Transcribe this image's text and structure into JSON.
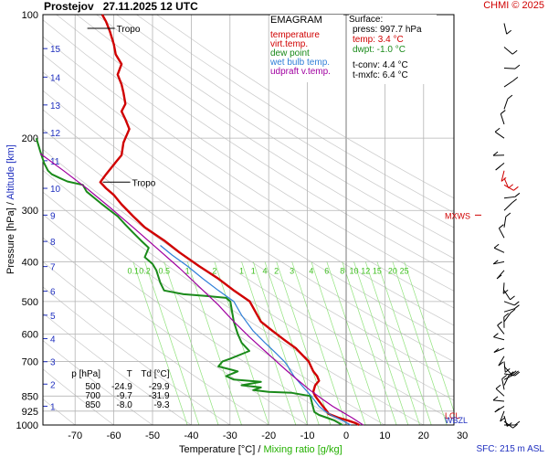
{
  "header": {
    "station": "Prostejov",
    "datetime": "27.11.2025 12 UTC",
    "copyright": "CHMI © 2025"
  },
  "legend": {
    "title": "EMAGRAM",
    "items": [
      {
        "label": "temperature",
        "color": "#d00000"
      },
      {
        "label": "virt.temp.",
        "color": "#d00000"
      },
      {
        "label": "dew point",
        "color": "#1a8a1a"
      },
      {
        "label": "wet bulb temp.",
        "color": "#2f7fd8"
      },
      {
        "label": "udpraft v.temp.",
        "color": "#a000a0"
      }
    ]
  },
  "surface": {
    "title": "Surface:",
    "press": "press: 997.7 hPa",
    "temp": "temp: 3.4 °C",
    "dwpt": "dwpt: -1.0 °C",
    "tconv": "t-conv: 4.4 °C",
    "tmxfc": "t-mxfc: 6.4 °C"
  },
  "table": {
    "headers": [
      "p [hPa]",
      "T",
      "Td [°C]"
    ],
    "rows": [
      [
        "500",
        "-24.9",
        "-29.9"
      ],
      [
        "700",
        "-9.7",
        "-31.9"
      ],
      [
        "850",
        "-8.0",
        "-9.3"
      ]
    ]
  },
  "axis_labels": {
    "y_pressure": "Pressure [hPa]  /  ",
    "y_altitude": "Altitude [km]",
    "x_temperature": "Temperature [°C]  /  ",
    "x_mixing": "Mixing ratio [g/kg]"
  },
  "sfc_text": "SFC: 215 m ASL",
  "colors": {
    "temperature": "#d00000",
    "dewpoint": "#1a8a1a",
    "wetbulb": "#2f7fd8",
    "parcel": "#a000a0",
    "mixing": "#8fe27a",
    "altitude": "#1f2fbf",
    "grid": "#b4b4b4"
  },
  "chart_data": {
    "type": "line",
    "title": "EMAGRAM",
    "xlabel": "Temperature [°C]",
    "ylabel": "Pressure [hPa]",
    "xlim": [
      -80,
      35
    ],
    "ylim": [
      1000,
      100
    ],
    "y_scale": "log",
    "x_ticks": [
      -70,
      -60,
      -50,
      -40,
      -30,
      -20,
      -10,
      0,
      10,
      20,
      30
    ],
    "y_ticks": [
      100,
      200,
      300,
      400,
      500,
      600,
      700,
      850,
      925,
      1000
    ],
    "altitude_ticks_km": [
      {
        "km": "1",
        "p": 900
      },
      {
        "km": "2",
        "p": 795
      },
      {
        "km": "3",
        "p": 701
      },
      {
        "km": "4",
        "p": 616
      },
      {
        "km": "5",
        "p": 540
      },
      {
        "km": "6",
        "p": 472
      },
      {
        "km": "7",
        "p": 411
      },
      {
        "km": "8",
        "p": 357
      },
      {
        "km": "9",
        "p": 308
      },
      {
        "km": "10",
        "p": 265
      },
      {
        "km": "11",
        "p": 227
      },
      {
        "km": "12",
        "p": 194
      },
      {
        "km": "13",
        "p": 166
      },
      {
        "km": "14",
        "p": 142
      },
      {
        "km": "15",
        "p": 121
      }
    ],
    "mixing_ratio_labels": [
      {
        "w": "0.1",
        "t": -55
      },
      {
        "w": "0.2",
        "t": -52
      },
      {
        "w": "0.5",
        "t": -47
      },
      {
        "w": "1",
        "t": -41
      },
      {
        "w": "2",
        "t": -34
      },
      {
        "w": "1",
        "t": -27
      },
      {
        "w": "1",
        "t": -24
      },
      {
        "w": "4",
        "t": -21
      },
      {
        "w": "2",
        "t": -18
      },
      {
        "w": "3",
        "t": -14
      },
      {
        "w": "4",
        "t": -9
      },
      {
        "w": "6",
        "t": -5
      },
      {
        "w": "8",
        "t": -1
      },
      {
        "w": "10",
        "t": 2
      },
      {
        "w": "12",
        "t": 5
      },
      {
        "w": "15",
        "t": 8
      },
      {
        "w": "20",
        "t": 12
      },
      {
        "w": "25",
        "t": 15
      }
    ],
    "series": [
      {
        "name": "temperature",
        "key": "temperature",
        "points": [
          [
            3.4,
            1000
          ],
          [
            2.5,
            990
          ],
          [
            0.5,
            975
          ],
          [
            -2,
            960
          ],
          [
            -4.5,
            940
          ],
          [
            -5,
            925
          ],
          [
            -6,
            900
          ],
          [
            -7,
            875
          ],
          [
            -8,
            850
          ],
          [
            -8.5,
            830
          ],
          [
            -8,
            800
          ],
          [
            -7,
            780
          ],
          [
            -7.5,
            760
          ],
          [
            -8.5,
            740
          ],
          [
            -9.7,
            700
          ],
          [
            -11,
            680
          ],
          [
            -13,
            650
          ],
          [
            -16,
            620
          ],
          [
            -19,
            590
          ],
          [
            -22,
            560
          ],
          [
            -24.9,
            500
          ],
          [
            -29,
            470
          ],
          [
            -33,
            440
          ],
          [
            -38,
            410
          ],
          [
            -43,
            380
          ],
          [
            -47,
            355
          ],
          [
            -52,
            330
          ],
          [
            -55,
            310
          ],
          [
            -58,
            290
          ],
          [
            -60,
            275
          ],
          [
            -62,
            265
          ],
          [
            -63.5,
            256
          ],
          [
            -62,
            245
          ],
          [
            -60,
            232
          ],
          [
            -58,
            220
          ],
          [
            -57.5,
            205
          ],
          [
            -56,
            190
          ],
          [
            -57,
            180
          ],
          [
            -58,
            172
          ],
          [
            -57,
            165
          ],
          [
            -57.5,
            155
          ],
          [
            -58,
            148
          ],
          [
            -59,
            140
          ],
          [
            -58,
            132
          ],
          [
            -59.5,
            125
          ],
          [
            -60,
            118
          ],
          [
            -61,
            110
          ],
          [
            -62,
            104
          ],
          [
            -63,
            100
          ]
        ]
      },
      {
        "name": "dew point",
        "key": "dewpoint",
        "points": [
          [
            -1,
            1000
          ],
          [
            -1.8,
            990
          ],
          [
            -3,
            975
          ],
          [
            -5,
            960
          ],
          [
            -7,
            945
          ],
          [
            -8.2,
            930
          ],
          [
            -8.6,
            900
          ],
          [
            -9.0,
            870
          ],
          [
            -9.3,
            850
          ],
          [
            -14,
            835
          ],
          [
            -20,
            830
          ],
          [
            -24,
            822
          ],
          [
            -22,
            810
          ],
          [
            -27,
            800
          ],
          [
            -22,
            785
          ],
          [
            -29,
            775
          ],
          [
            -31,
            760
          ],
          [
            -28,
            740
          ],
          [
            -33,
            720
          ],
          [
            -31.9,
            700
          ],
          [
            -30,
            690
          ],
          [
            -25,
            660
          ],
          [
            -27,
            630
          ],
          [
            -28,
            600
          ],
          [
            -29,
            560
          ],
          [
            -29.9,
            500
          ],
          [
            -31,
            490
          ],
          [
            -36,
            485
          ],
          [
            -42,
            480
          ],
          [
            -47,
            470
          ],
          [
            -48,
            450
          ],
          [
            -49,
            420
          ],
          [
            -50,
            405
          ],
          [
            -52,
            390
          ],
          [
            -51,
            370
          ],
          [
            -53,
            355
          ],
          [
            -55,
            340
          ],
          [
            -57,
            325
          ],
          [
            -59,
            310
          ],
          [
            -61,
            300
          ],
          [
            -63,
            290
          ],
          [
            -67,
            270
          ],
          [
            -68,
            260
          ],
          [
            -72,
            255
          ],
          [
            -74,
            250
          ],
          [
            -76,
            245
          ],
          [
            -77,
            240
          ],
          [
            -78,
            230
          ],
          [
            -79,
            215
          ],
          [
            -80,
            200
          ]
        ]
      },
      {
        "name": "wet bulb temp.",
        "key": "wetbulb",
        "points": [
          [
            1.2,
            1000
          ],
          [
            -1,
            975
          ],
          [
            -3.5,
            950
          ],
          [
            -5.5,
            925
          ],
          [
            -7,
            900
          ],
          [
            -8,
            875
          ],
          [
            -9,
            850
          ],
          [
            -10.5,
            820
          ],
          [
            -12,
            790
          ],
          [
            -13.5,
            760
          ],
          [
            -15,
            720
          ],
          [
            -16,
            700
          ],
          [
            -18,
            670
          ],
          [
            -21,
            630
          ],
          [
            -24,
            590
          ],
          [
            -27,
            540
          ],
          [
            -29,
            500
          ],
          [
            -33,
            470
          ],
          [
            -37,
            440
          ],
          [
            -41,
            410
          ],
          [
            -45,
            385
          ],
          [
            -48,
            365
          ]
        ]
      },
      {
        "name": "udpraft v.temp.",
        "key": "parcel",
        "points": [
          [
            4.4,
            1000
          ],
          [
            1.5,
            960
          ],
          [
            -1,
            930
          ],
          [
            -3.5,
            900
          ],
          [
            -6.5,
            860
          ],
          [
            -9.5,
            820
          ],
          [
            -13,
            770
          ],
          [
            -15.5,
            735
          ],
          [
            -18,
            700
          ],
          [
            -21,
            660
          ],
          [
            -25,
            610
          ],
          [
            -29,
            560
          ],
          [
            -33,
            510
          ],
          [
            -38,
            460
          ],
          [
            -43,
            415
          ],
          [
            -49,
            370
          ],
          [
            -55,
            330
          ],
          [
            -61,
            295
          ],
          [
            -67,
            265
          ],
          [
            -73,
            240
          ],
          [
            -79,
            218
          ]
        ]
      }
    ],
    "annotations": [
      {
        "text": "Tropo",
        "t": -64,
        "p": 108
      },
      {
        "text": "Tropo",
        "t": -60,
        "p": 256
      },
      {
        "text": "MXWS",
        "t": 36,
        "p": 308
      }
    ],
    "right_panel_labels": [
      {
        "text": "LCL",
        "p": 945,
        "color": "#d00000"
      },
      {
        "text": "WBZL",
        "p": 970,
        "color": "#1f2fbf"
      }
    ]
  }
}
